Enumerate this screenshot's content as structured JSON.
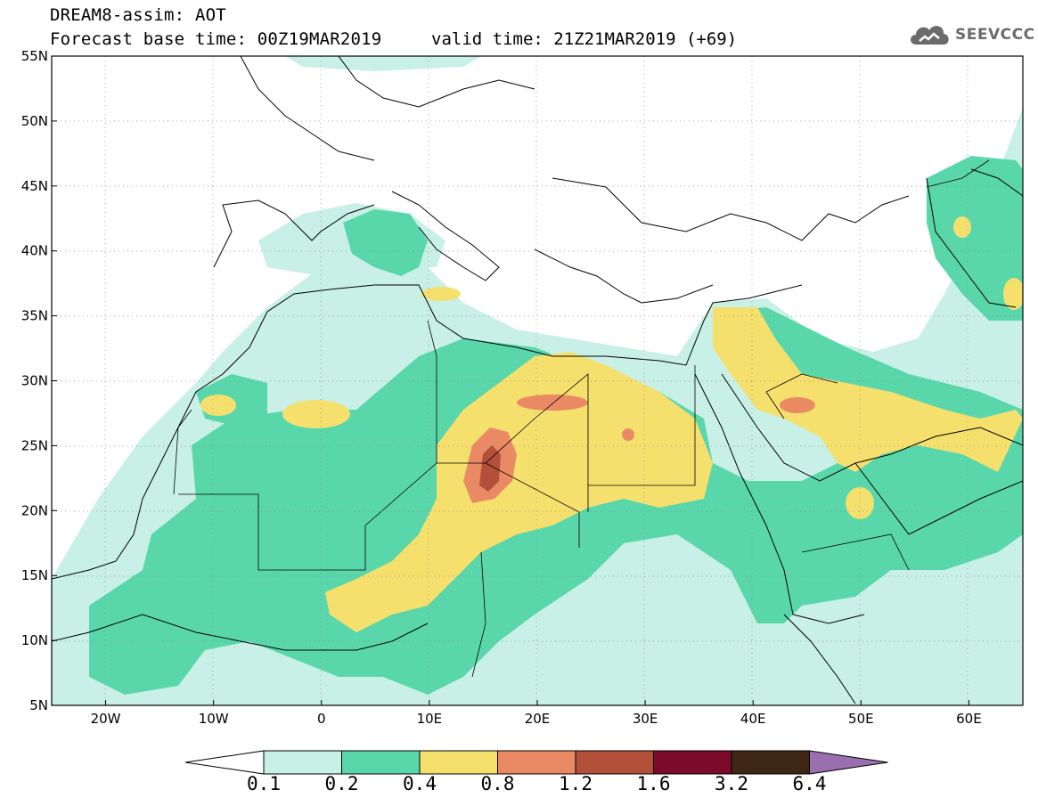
{
  "header": {
    "title": "DREAM8-assim: AOT",
    "base_time": "Forecast base time: 00Z19MAR2019",
    "valid_time": "valid time: 21Z21MAR2019 (+69)",
    "logo_text": "SEEVCCC",
    "logo_icon": "cloud-icon"
  },
  "map": {
    "lon_range": [
      -25,
      65
    ],
    "lat_range": [
      5,
      55
    ],
    "lat_labels": [
      "55N",
      "50N",
      "45N",
      "40N",
      "35N",
      "30N",
      "25N",
      "20N",
      "15N",
      "10N",
      "5N"
    ],
    "lon_labels": [
      "20W",
      "10W",
      "0",
      "10E",
      "20E",
      "30E",
      "40E",
      "50E",
      "60E"
    ]
  },
  "colorbar": {
    "levels": [
      "0.1",
      "0.2",
      "0.4",
      "0.8",
      "1.2",
      "1.6",
      "3.2",
      "6.4"
    ],
    "colors": [
      "#ffffff",
      "#c8f0e6",
      "#5ad7aa",
      "#f5e06e",
      "#e98a64",
      "#b3503a",
      "#7c0a2a",
      "#3d2614",
      "#9a6fb0"
    ]
  }
}
